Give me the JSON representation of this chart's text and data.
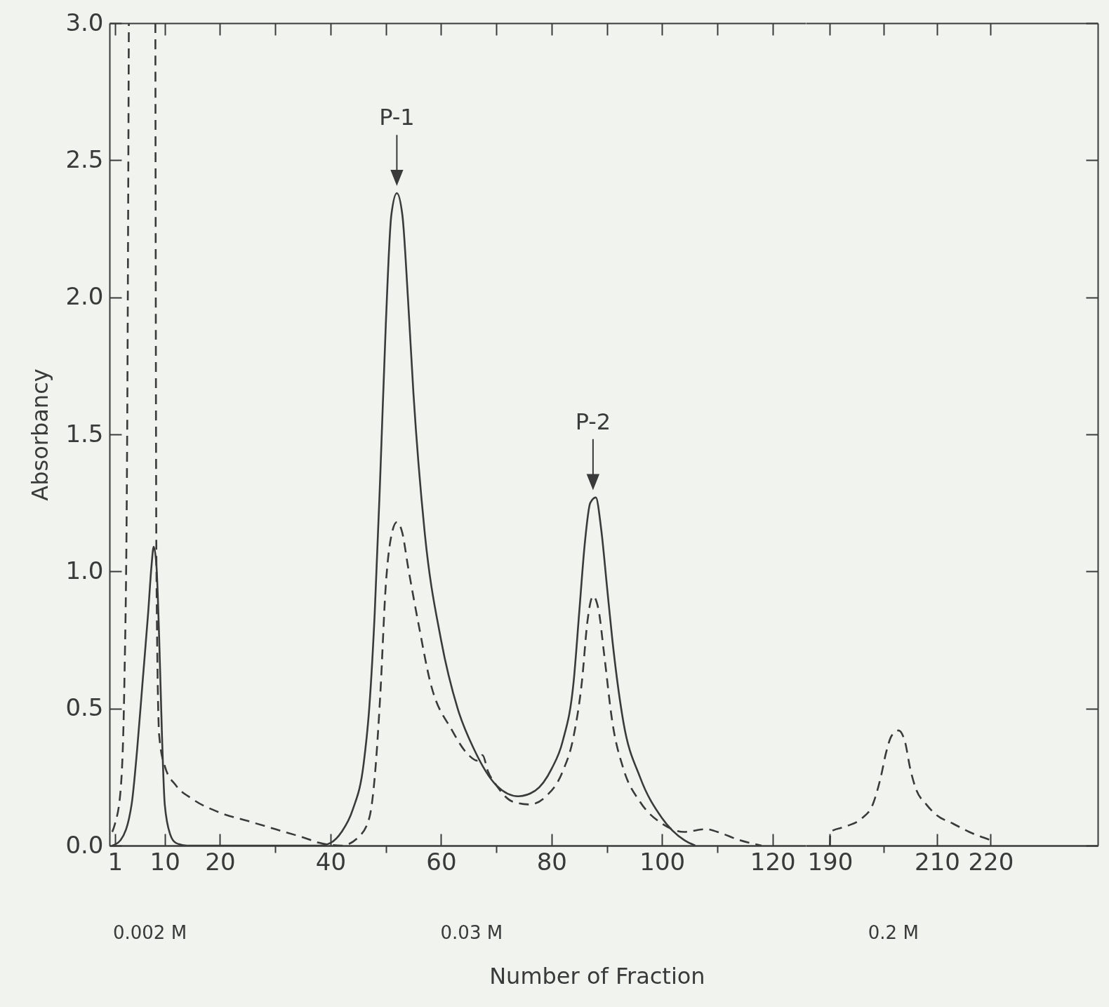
{
  "chart_data": [
    {
      "type": "line",
      "xlabel": "Number of Fraction",
      "ylabel": "Absorbancy",
      "xlim": [
        0,
        126
      ],
      "ylim": [
        0,
        3.0
      ],
      "xticks": [
        1,
        10,
        20,
        {
          "value": 30,
          "label": null
        },
        40,
        {
          "value": 50,
          "label": null
        },
        60,
        {
          "value": 70,
          "label": null
        },
        80,
        {
          "value": 90,
          "label": null
        },
        100,
        {
          "value": 110,
          "label": null
        },
        120
      ],
      "yticks": [
        {
          "value": 0,
          "label": "0.0"
        },
        {
          "value": 0.5,
          "label": "0.5"
        },
        {
          "value": 1,
          "label": "1.0"
        },
        {
          "value": 1.5,
          "label": "1.5"
        },
        {
          "value": 2,
          "label": "2.0"
        },
        {
          "value": 2.5,
          "label": "2.5"
        },
        {
          "value": 3,
          "label": "3.0"
        }
      ],
      "series": [
        {
          "color": "#3a3a3a",
          "line_style": "solid",
          "x": [
            0.5,
            2,
            4,
            5,
            6,
            7,
            7.6,
            8,
            8.5,
            9,
            9.5,
            10,
            11,
            12,
            14,
            38,
            40,
            42,
            44,
            46,
            47,
            48,
            49,
            50,
            51,
            52,
            53,
            54,
            55,
            57,
            60,
            63,
            66,
            70,
            74,
            77,
            80,
            82,
            84,
            85,
            86,
            87,
            88,
            89,
            90,
            91,
            93,
            96,
            100,
            104,
            106
          ],
          "values": [
            0,
            0.02,
            0.15,
            0.35,
            0.6,
            0.85,
            1.02,
            1.09,
            1.02,
            0.75,
            0.4,
            0.15,
            0.04,
            0.01,
            0,
            0,
            0.01,
            0.05,
            0.13,
            0.3,
            0.5,
            0.85,
            1.35,
            1.9,
            2.3,
            2.38,
            2.3,
            2.0,
            1.65,
            1.15,
            0.75,
            0.5,
            0.35,
            0.22,
            0.18,
            0.2,
            0.28,
            0.38,
            0.6,
            0.85,
            1.1,
            1.25,
            1.27,
            1.15,
            0.95,
            0.75,
            0.45,
            0.25,
            0.1,
            0.02,
            0
          ]
        },
        {
          "color": "#3a3a3a",
          "line_style": "dashed",
          "x": [
            0.5,
            1,
            2,
            2.7,
            3.2,
            3.5,
            6,
            8.3,
            8.5,
            9,
            10,
            12,
            15,
            20,
            25,
            30,
            35,
            38,
            42,
            45,
            47,
            48,
            49,
            50,
            51,
            52,
            53,
            54,
            56,
            58,
            62,
            65,
            66.5,
            67.5,
            68.5,
            70,
            73,
            76,
            79,
            82,
            84,
            85.5,
            86.5,
            87.5,
            88.5,
            89.5,
            91,
            93,
            96,
            100,
            104,
            108,
            110,
            114,
            118
          ],
          "values": [
            0.05,
            0.08,
            0.2,
            0.6,
            1.5,
            3.0,
            null,
            3.0,
            1.0,
            0.4,
            0.29,
            0.22,
            0.17,
            0.12,
            0.09,
            0.06,
            0.03,
            0.01,
            0,
            0.03,
            0.1,
            0.25,
            0.55,
            0.95,
            1.13,
            1.18,
            1.14,
            1.02,
            0.8,
            0.6,
            0.42,
            0.33,
            0.31,
            0.33,
            0.27,
            0.22,
            0.16,
            0.15,
            0.18,
            0.27,
            0.4,
            0.6,
            0.82,
            0.91,
            0.86,
            0.7,
            0.45,
            0.28,
            0.16,
            0.08,
            0.05,
            0.06,
            0.05,
            0.02,
            0
          ]
        }
      ],
      "annotations": [
        {
          "text": "P-1",
          "x": 52,
          "y": 2.38
        },
        {
          "text": "P-2",
          "x": 87.5,
          "y": 1.27
        },
        "0.002 M",
        "0.03 M"
      ]
    },
    {
      "type": "line",
      "tick_labels": "x",
      "xlim": [
        185.5,
        240
      ],
      "ylim": [
        0,
        3.0
      ],
      "xticks": [
        190,
        {
          "value": 200,
          "label": null
        },
        210,
        220
      ],
      "yticks": [
        {
          "value": 0,
          "label": null
        },
        {
          "value": 0.5,
          "label": null
        },
        {
          "value": 1,
          "label": null
        },
        {
          "value": 1.5,
          "label": null
        },
        {
          "value": 2,
          "label": null
        },
        {
          "value": 2.5,
          "label": null
        },
        {
          "value": 3,
          "label": null
        }
      ],
      "series": [
        {
          "color": "#3a3a3a",
          "line_style": "dashed",
          "x": [
            190,
            190.1,
            193,
            196,
            198,
            199.5,
            200.5,
            201.5,
            202.8,
            204,
            205,
            206,
            208,
            210,
            213,
            216,
            220
          ],
          "values": [
            0,
            0.05,
            0.07,
            0.1,
            0.15,
            0.25,
            0.34,
            0.4,
            0.42,
            0.38,
            0.28,
            0.21,
            0.15,
            0.11,
            0.08,
            0.05,
            0.02
          ]
        }
      ],
      "annotations": [
        "0.2 M"
      ]
    }
  ]
}
